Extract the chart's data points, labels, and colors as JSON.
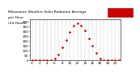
{
  "title": "Milwaukee Weather Solar Radiation Average  per Hour  (24 Hours)",
  "hours": [
    0,
    1,
    2,
    3,
    4,
    5,
    6,
    7,
    8,
    9,
    10,
    11,
    12,
    13,
    14,
    15,
    16,
    17,
    18,
    19,
    20,
    21,
    22,
    23
  ],
  "values": [
    0,
    0,
    0,
    0,
    0,
    2,
    18,
    60,
    130,
    210,
    290,
    355,
    380,
    360,
    305,
    225,
    145,
    72,
    20,
    3,
    0,
    0,
    0,
    0
  ],
  "dot_color": "#cc0000",
  "bg_color": "#ffffff",
  "grid_color": "#aaaaaa",
  "ylim": [
    0,
    420
  ],
  "xlim": [
    -0.5,
    23.5
  ],
  "legend_color": "#cc0000",
  "yticks": [
    0,
    50,
    100,
    150,
    200,
    250,
    300,
    350,
    400
  ],
  "xtick_step": 2
}
